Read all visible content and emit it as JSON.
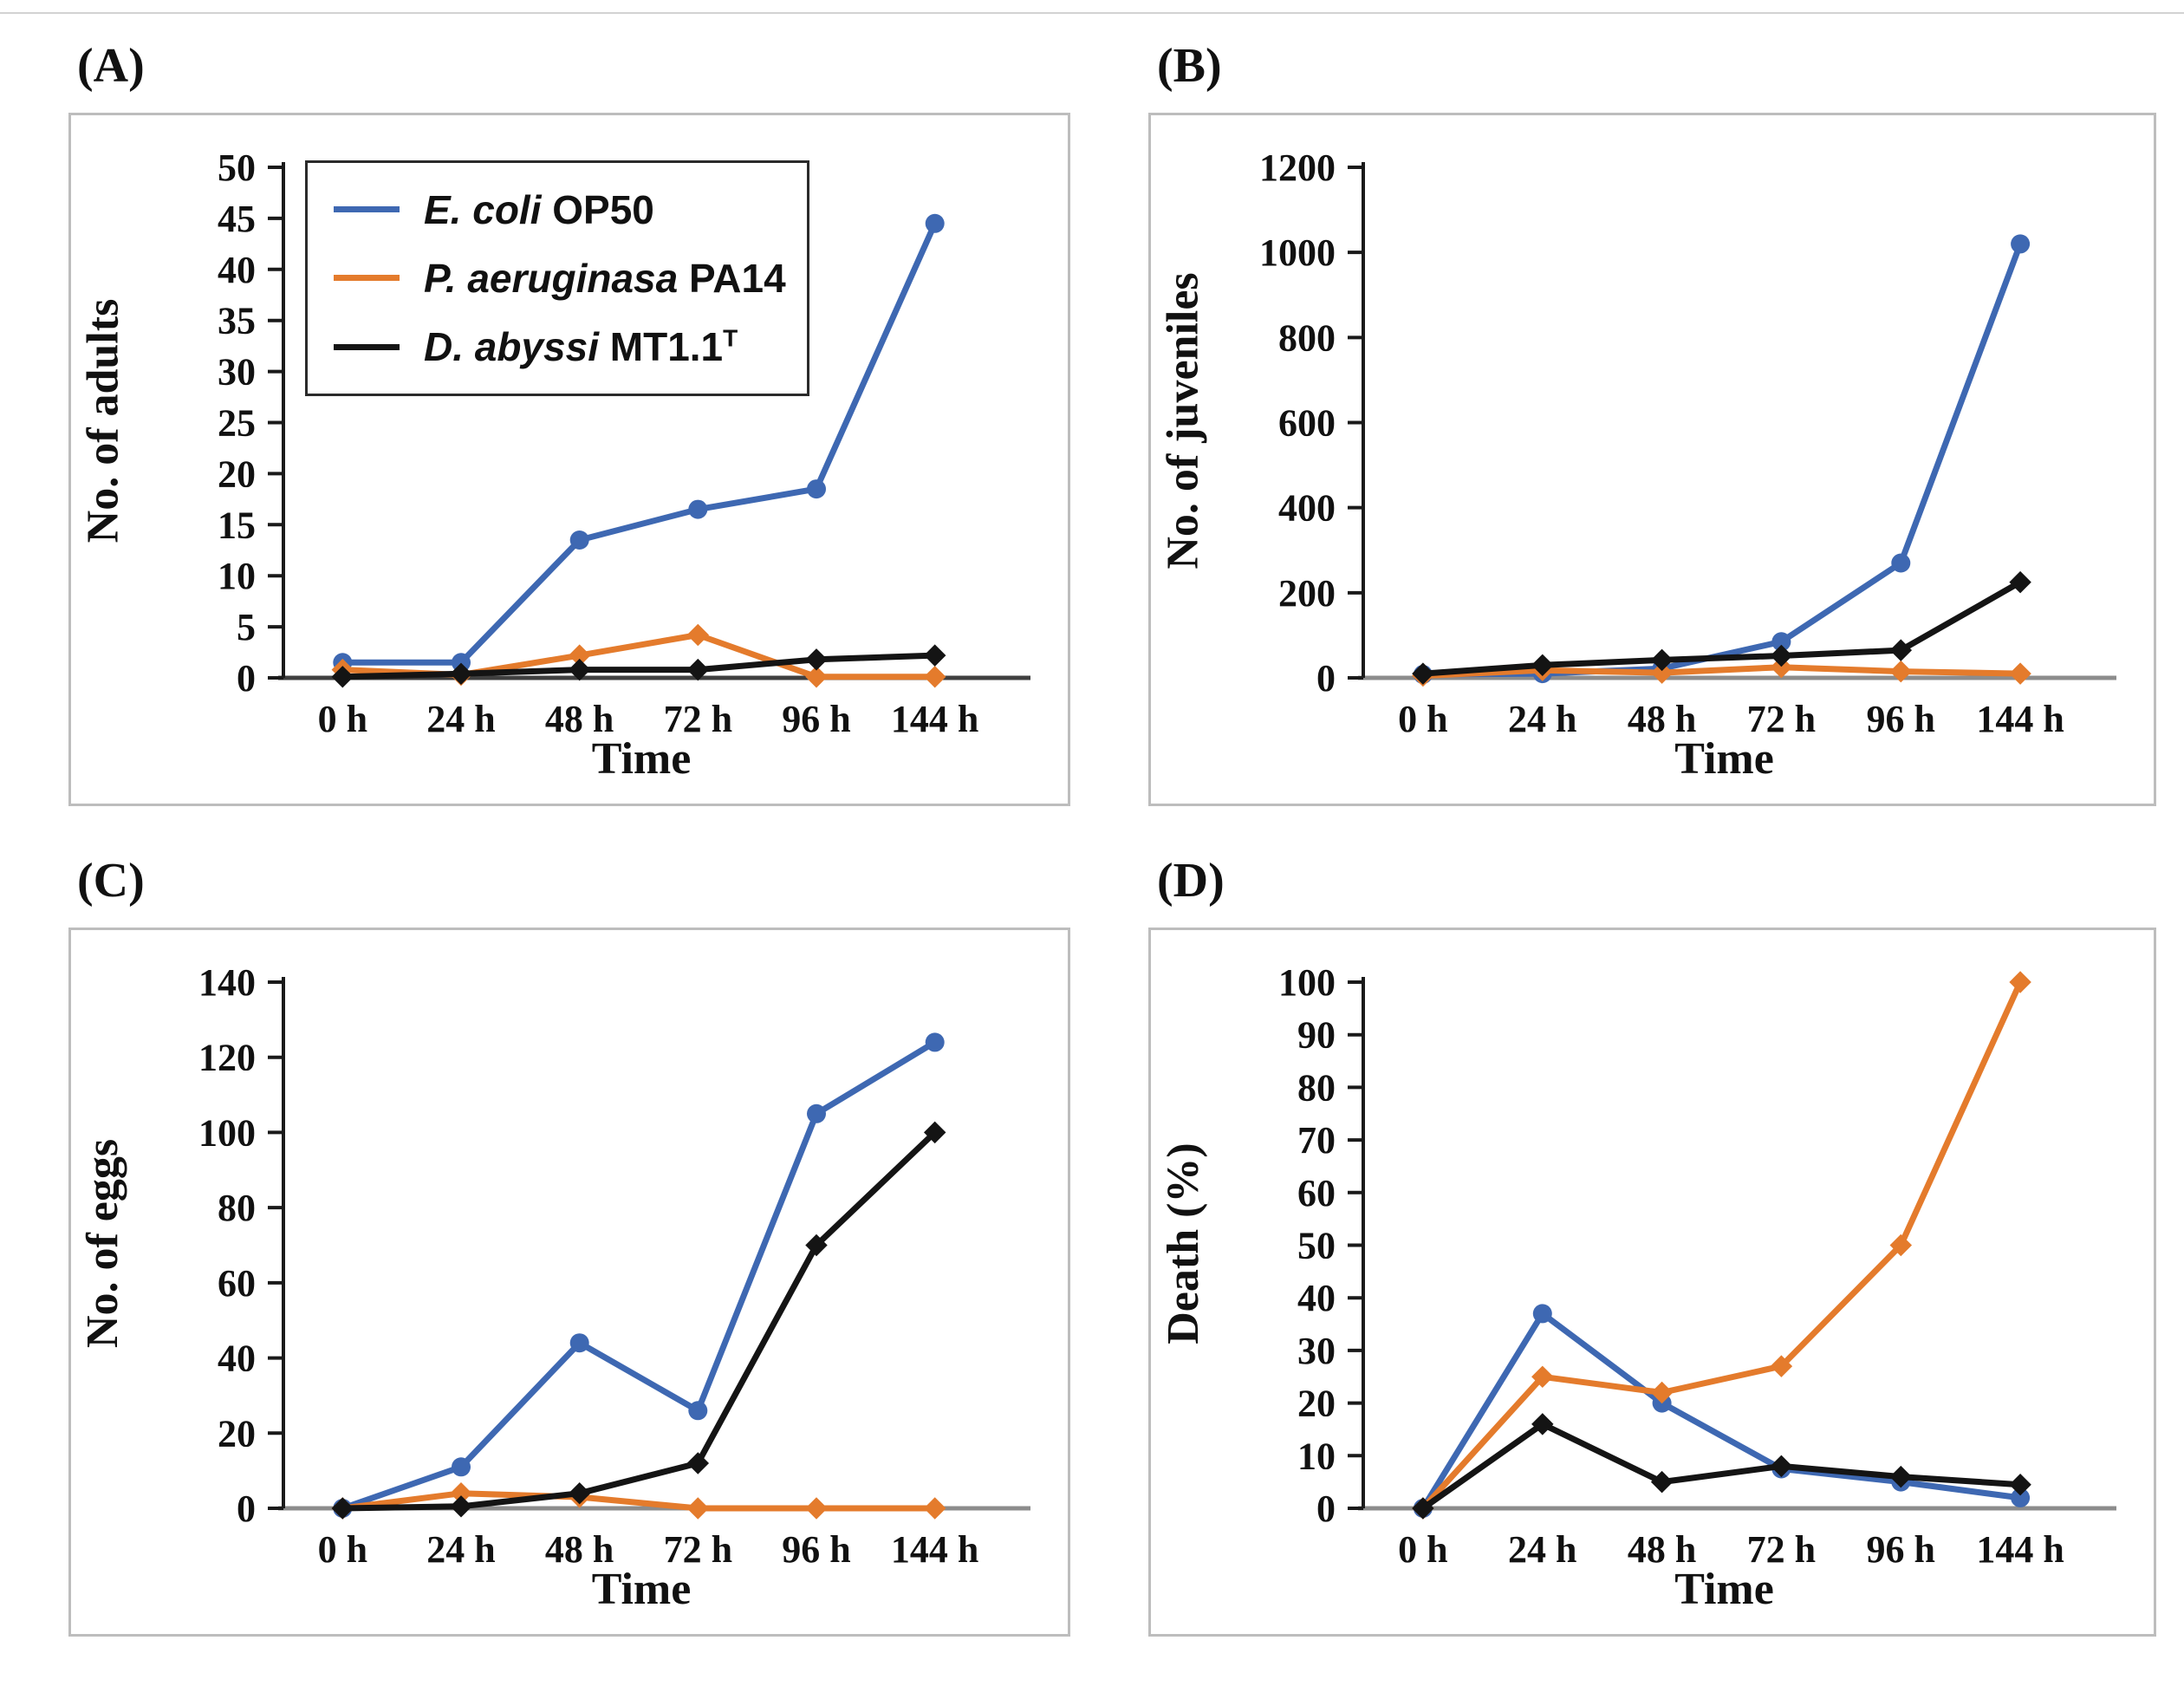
{
  "page": {
    "background": "#ffffff"
  },
  "legend": {
    "items": [
      {
        "species": "E. coli",
        "strain": " OP50",
        "sup": "",
        "color": "#3e68b2"
      },
      {
        "species": "P. aeruginasa",
        "strain": " PA14",
        "sup": "",
        "color": "#e47b2c"
      },
      {
        "species": "D. abyssi",
        "strain": " MT1.1",
        "sup": "T",
        "color": "#141414"
      }
    ]
  },
  "chart_data": [
    {
      "panel_label": "(A)",
      "type": "line",
      "title": "",
      "ylabel": "No. of adults",
      "xlabel": "Time",
      "categories": [
        "0 h",
        "24 h",
        "48 h",
        "72 h",
        "96 h",
        "144 h"
      ],
      "ylim": [
        0,
        50
      ],
      "ytick_step": 5,
      "grid": "off",
      "legend_position": "inside-top-left",
      "baseline_color": "#3f3f3f",
      "series": [
        {
          "name": "E. coli OP50",
          "color": "#3e68b2",
          "marker": "circle",
          "values": [
            1.5,
            1.5,
            13.5,
            16.5,
            18.5,
            44.5
          ]
        },
        {
          "name": "P. aeruginasa PA14",
          "color": "#e47b2c",
          "marker": "diamond",
          "values": [
            0.8,
            0.3,
            2.2,
            4.2,
            0.1,
            0.1
          ]
        },
        {
          "name": "D. abyssi MT1.1T",
          "color": "#141414",
          "marker": "diamond",
          "values": [
            0.1,
            0.4,
            0.8,
            0.8,
            1.8,
            2.2
          ]
        }
      ]
    },
    {
      "panel_label": "(B)",
      "type": "line",
      "title": "",
      "ylabel": "No. of juveniles",
      "xlabel": "Time",
      "categories": [
        "0 h",
        "24 h",
        "48 h",
        "72 h",
        "96 h",
        "144 h"
      ],
      "ylim": [
        0,
        1200
      ],
      "ytick_step": 200,
      "grid": "off",
      "legend_position": "none",
      "baseline_color": "#8c8c8c",
      "series": [
        {
          "name": "E. coli OP50",
          "color": "#3e68b2",
          "marker": "circle",
          "values": [
            8,
            10,
            22,
            85,
            270,
            1020
          ]
        },
        {
          "name": "P. aeruginasa PA14",
          "color": "#e47b2c",
          "marker": "diamond",
          "values": [
            5,
            18,
            12,
            25,
            15,
            10
          ]
        },
        {
          "name": "D. abyssi MT1.1T",
          "color": "#141414",
          "marker": "diamond",
          "values": [
            10,
            30,
            42,
            52,
            65,
            225
          ]
        }
      ]
    },
    {
      "panel_label": "(C)",
      "type": "line",
      "title": "",
      "ylabel": "No. of eggs",
      "xlabel": "Time",
      "categories": [
        "0 h",
        "24 h",
        "48 h",
        "72 h",
        "96 h",
        "144 h"
      ],
      "ylim": [
        0,
        140
      ],
      "ytick_step": 20,
      "grid": "off",
      "legend_position": "none",
      "baseline_color": "#8c8c8c",
      "series": [
        {
          "name": "E. coli OP50",
          "color": "#3e68b2",
          "marker": "circle",
          "values": [
            0,
            11,
            44,
            26,
            105,
            124
          ]
        },
        {
          "name": "P. aeruginasa PA14",
          "color": "#e47b2c",
          "marker": "diamond",
          "values": [
            0,
            4,
            3,
            0,
            0,
            0
          ]
        },
        {
          "name": "D. abyssi MT1.1T",
          "color": "#141414",
          "marker": "diamond",
          "values": [
            0,
            0.5,
            4,
            12,
            70,
            100
          ]
        }
      ]
    },
    {
      "panel_label": "(D)",
      "type": "line",
      "title": "",
      "ylabel": "Death (%)",
      "xlabel": "Time",
      "categories": [
        "0 h",
        "24 h",
        "48 h",
        "72 h",
        "96 h",
        "144 h"
      ],
      "ylim": [
        0,
        100
      ],
      "ytick_step": 10,
      "grid": "off",
      "legend_position": "none",
      "baseline_color": "#8c8c8c",
      "series": [
        {
          "name": "E. coli OP50",
          "color": "#3e68b2",
          "marker": "circle",
          "values": [
            0,
            37,
            20,
            7.5,
            5,
            2
          ]
        },
        {
          "name": "P. aeruginasa PA14",
          "color": "#e47b2c",
          "marker": "diamond",
          "values": [
            0,
            25,
            22,
            27,
            50,
            100
          ]
        },
        {
          "name": "D. abyssi MT1.1T",
          "color": "#141414",
          "marker": "diamond",
          "values": [
            0,
            16,
            5,
            8,
            6,
            4.5
          ]
        }
      ]
    }
  ]
}
